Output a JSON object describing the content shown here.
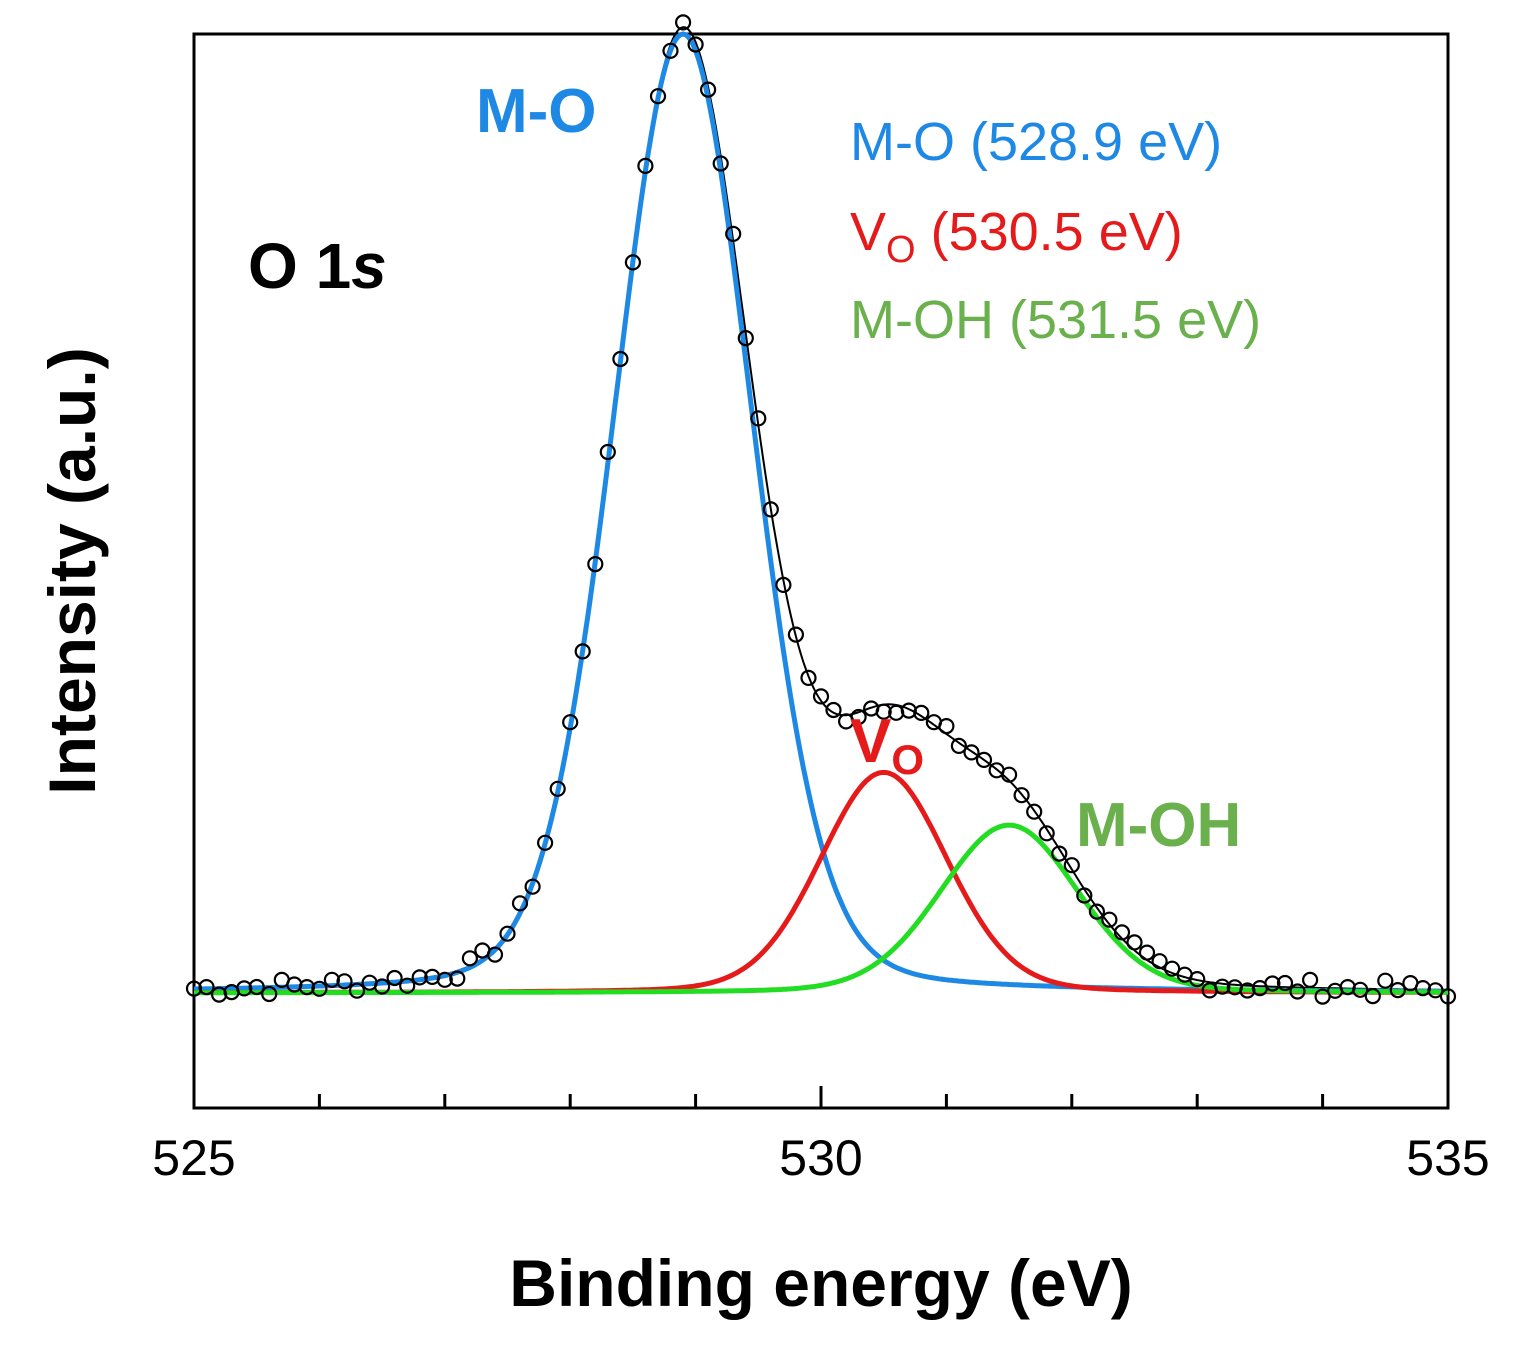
{
  "chart_data": {
    "type": "line",
    "title": "",
    "panel_label": {
      "main": "O 1",
      "italic": "s"
    },
    "xlabel": "Binding energy (eV)",
    "ylabel": "Intensity (a.u.)",
    "xlim": [
      525,
      535
    ],
    "ylim": [
      -0.12,
      1.0
    ],
    "x_ticks_major": [
      "525",
      "530",
      "535"
    ],
    "x_ticks_minor": [
      526,
      527,
      528,
      529,
      531,
      532,
      533,
      534
    ],
    "y_ticks": "none",
    "grid": false,
    "background": 0.0,
    "colors": {
      "m_o": "#1e88e5",
      "vo": "#e51a1a",
      "m_oh": "#22dd22",
      "m_oh_text": "#6ab04c",
      "data": "#000000"
    },
    "series": [
      {
        "name": "M-O",
        "center_ev": 528.9,
        "amplitude": 1.0,
        "fwhm_ev": 1.3,
        "color": "#1e88e5"
      },
      {
        "name": "V",
        "sub": "O",
        "center_ev": 530.5,
        "amplitude": 0.23,
        "fwhm_ev": 1.2,
        "color": "#e51a1a"
      },
      {
        "name": "M-OH",
        "center_ev": 531.5,
        "amplitude": 0.175,
        "fwhm_ev": 1.3,
        "color": "#22dd22"
      }
    ],
    "peak_labels": [
      {
        "text": "M-O",
        "sub": "",
        "color": "#1e88e5"
      },
      {
        "text": "V",
        "sub": "O",
        "color": "#e51a1a"
      },
      {
        "text": "M-OH",
        "sub": "",
        "color": "#6ab04c"
      }
    ],
    "legend": {
      "position": "top-right",
      "entries": [
        {
          "main": "M-O",
          "sub": "",
          "value": "(528.9 eV)",
          "color": "#1e88e5"
        },
        {
          "main": "V",
          "sub": "O",
          "value": "(530.5 eV)",
          "color": "#e51a1a"
        },
        {
          "main": "M-OH",
          "sub": "",
          "value": "(531.5 eV)",
          "color": "#6ab04c"
        }
      ]
    },
    "measured": {
      "marker": "open-circle",
      "x_start": 525.0,
      "x_end": 535.0,
      "step": 0.1
    }
  }
}
